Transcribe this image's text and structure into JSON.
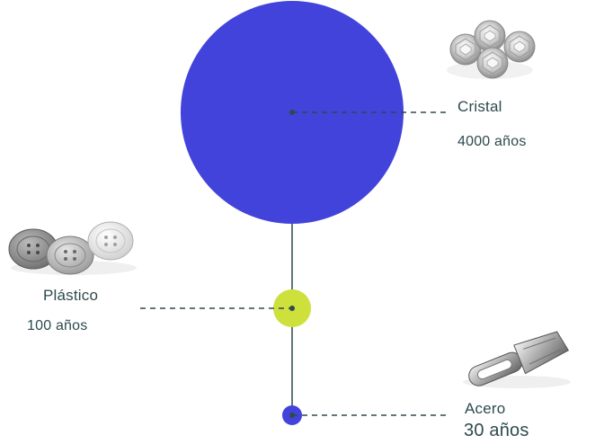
{
  "items": [
    {
      "name": "Cristal",
      "years": "4000 años",
      "color": "#4143db",
      "icon": "crystal-gems-icon"
    },
    {
      "name": "Plástico",
      "years": "100 años",
      "color": "#cde03b",
      "icon": "plastic-buttons-icon"
    },
    {
      "name": "Acero",
      "years": "30 años",
      "color": "#4143db",
      "icon": "steel-zipper-pull-icon"
    }
  ],
  "colors": {
    "line": "#2f4a4d",
    "text": "#2e4a4d",
    "large_circle": "#4143db",
    "medium_circle": "#cde03b",
    "small_circle": "#4143db"
  }
}
